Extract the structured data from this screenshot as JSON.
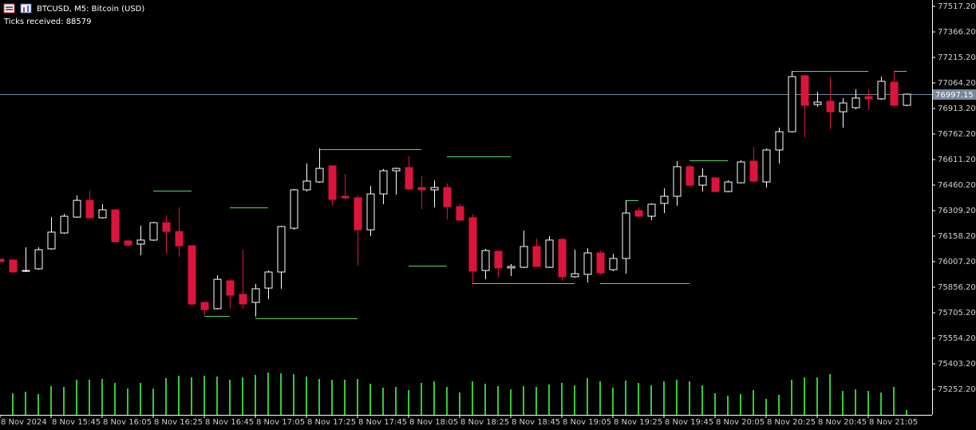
{
  "chart_data": {
    "type": "candlestick",
    "title": "BTCUSD, M5:  Bitcoin (USD)",
    "subtitle": "Ticks received: 88579",
    "categories": [
      "8 Nov 2024",
      null,
      null,
      null,
      "8 Nov 15:45",
      null,
      null,
      null,
      "8 Nov 16:05",
      null,
      null,
      null,
      "8 Nov 16:25",
      null,
      null,
      null,
      "8 Nov 16:45",
      null,
      null,
      null,
      "8 Nov 17:05",
      null,
      null,
      null,
      "8 Nov 17:25",
      null,
      null,
      null,
      "8 Nov 17:45",
      null,
      null,
      null,
      "8 Nov 18:05",
      null,
      null,
      null,
      "8 Nov 18:25",
      null,
      null,
      null,
      "8 Nov 18:45",
      null,
      null,
      null,
      "8 Nov 19:05",
      null,
      null,
      null,
      "8 Nov 19:25",
      null,
      null,
      null,
      "8 Nov 19:45",
      null,
      null,
      null,
      "8 Nov 20:05",
      null,
      null,
      null,
      "8 Nov 20:25",
      null,
      null,
      null,
      "8 Nov 20:45",
      null,
      null,
      null,
      "8 Nov 21:05",
      null,
      null,
      null
    ],
    "open": [
      76022,
      76017,
      75951,
      75965,
      76083,
      76177,
      76271,
      76370,
      76267,
      76314,
      76130,
      76111,
      76135,
      76238,
      76186,
      76101,
      75766,
      75729,
      75894,
      75814,
      75766,
      75851,
      75946,
      76205,
      76432,
      76479,
      76574,
      76394,
      76385,
      76196,
      76408,
      76545,
      76564,
      76446,
      76432,
      76446,
      76333,
      76267,
      75955,
      76069,
      75970,
      75974,
      76097,
      75974,
      76139,
      75918,
      75932,
      76059,
      75960,
      76026,
      76309,
      76276,
      76352,
      76394,
      76569,
      76460,
      76503,
      76422,
      76474,
      76602,
      76479,
      76668,
      76776,
      77107,
      76937,
      76956,
      76894,
      76918,
      76984,
      76970,
      77069,
      76932
    ],
    "high": [
      76022,
      76022,
      76092,
      76092,
      76271,
      76290,
      76399,
      76427,
      76347,
      76314,
      76139,
      76220,
      76243,
      76281,
      76328,
      76106,
      75771,
      75927,
      75903,
      76078,
      75875,
      75955,
      76220,
      76437,
      76588,
      76677,
      76578,
      76526,
      76399,
      76455,
      76555,
      76564,
      76630,
      76512,
      76488,
      76470,
      76347,
      76290,
      76083,
      76073,
      75993,
      76191,
      76144,
      76158,
      76144,
      76078,
      76087,
      76073,
      76054,
      76370,
      76328,
      76352,
      76441,
      76602,
      76578,
      76559,
      76507,
      76488,
      76607,
      76687,
      76677,
      76800,
      77135,
      77111,
      77013,
      77097,
      76975,
      77027,
      77027,
      77102,
      77135,
      77003
    ],
    "low": [
      76007,
      75941,
      75946,
      75960,
      76078,
      76172,
      76267,
      76262,
      76262,
      76120,
      76101,
      76045,
      76130,
      76054,
      76036,
      75747,
      75691,
      75724,
      75729,
      75729,
      75682,
      75785,
      75847,
      76196,
      76422,
      76474,
      76338,
      76375,
      75984,
      76158,
      76347,
      76404,
      76432,
      76319,
      76328,
      76257,
      76248,
      75880,
      75903,
      75913,
      75922,
      75970,
      75974,
      75970,
      75894,
      75913,
      75884,
      75932,
      75951,
      75936,
      76271,
      76253,
      76295,
      76338,
      76451,
      76422,
      76418,
      76418,
      76470,
      76474,
      76446,
      76588,
      76772,
      76743,
      76923,
      76791,
      76800,
      76908,
      76904,
      76965,
      76923,
      76927
    ],
    "close": [
      76007,
      75946,
      75955,
      76078,
      76182,
      76276,
      76370,
      76267,
      76314,
      76125,
      76106,
      76135,
      76238,
      76186,
      76101,
      75757,
      75724,
      75903,
      75809,
      75757,
      75847,
      75946,
      76215,
      76432,
      76484,
      76559,
      76375,
      76385,
      76196,
      76408,
      76545,
      76559,
      76437,
      76432,
      76446,
      76333,
      76253,
      75951,
      76073,
      75970,
      75979,
      76097,
      75979,
      76135,
      75918,
      75936,
      76059,
      75941,
      76026,
      76295,
      76276,
      76347,
      76394,
      76569,
      76460,
      76512,
      76422,
      76479,
      76597,
      76484,
      76668,
      76776,
      77102,
      76932,
      76951,
      76894,
      76946,
      76975,
      76970,
      77074,
      76932,
      76998
    ],
    "volume": [
      null,
      27,
      29,
      26,
      36,
      35,
      44,
      44,
      45,
      40,
      33,
      40,
      33,
      46,
      49,
      47,
      49,
      48,
      44,
      47,
      50,
      53,
      52,
      51,
      48,
      45,
      44,
      44,
      45,
      39,
      34,
      35,
      31,
      40,
      42,
      35,
      28,
      42,
      39,
      36,
      32,
      36,
      35,
      38,
      40,
      37,
      46,
      42,
      34,
      43,
      40,
      37,
      42,
      44,
      42,
      37,
      27,
      24,
      26,
      31,
      20,
      25,
      44,
      47,
      47,
      51,
      30,
      32,
      30,
      28,
      35,
      6
    ],
    "levels": [
      {
        "price": 76427,
        "from": 12,
        "to": 15
      },
      {
        "price": 76328,
        "from": 18,
        "to": 21
      },
      {
        "price": 75686,
        "from": 16,
        "to": 18
      },
      {
        "price": 75672,
        "from": 20,
        "to": 28
      },
      {
        "price": 76672,
        "from": 25,
        "to": 33
      },
      {
        "price": 76630,
        "from": 35,
        "to": 40
      },
      {
        "price": 75984,
        "from": 32,
        "to": 35
      },
      {
        "price": 75880,
        "from": 37,
        "to": 45
      },
      {
        "price": 75880,
        "from": 47,
        "to": 54
      },
      {
        "price": 76370,
        "from": 49,
        "to": 50
      },
      {
        "price": 76607,
        "from": 54,
        "to": 57
      },
      {
        "price": 77135,
        "from": 62,
        "to": 68
      },
      {
        "price": 77135,
        "from": 70,
        "to": 71
      }
    ],
    "last_price": 76997.15,
    "ylim": [
      75101.2,
      77555
    ],
    "yticks": [
      {
        "value": 77517.2,
        "label": "77517.20"
      },
      {
        "value": 77366.2,
        "label": "77366.20"
      },
      {
        "value": 77215.2,
        "label": "77215.20"
      },
      {
        "value": 77064.2,
        "label": "77064.20"
      },
      {
        "value": 76913.2,
        "label": "76913.20"
      },
      {
        "value": 76762.2,
        "label": "76762.20"
      },
      {
        "value": 76611.2,
        "label": "76611.20"
      },
      {
        "value": 76460.2,
        "label": "76460.20"
      },
      {
        "value": 76309.2,
        "label": "76309.20"
      },
      {
        "value": 76158.2,
        "label": "76158.20"
      },
      {
        "value": 76007.2,
        "label": "76007.20"
      },
      {
        "value": 75856.2,
        "label": "75856.20"
      },
      {
        "value": 75705.2,
        "label": "75705.20"
      },
      {
        "value": 75554.2,
        "label": "75554.20"
      },
      {
        "value": 75403.2,
        "label": "75403.20"
      },
      {
        "value": 75252.2,
        "label": "75252.20"
      }
    ],
    "up_color": "#ffffff",
    "down_color": "#dc143c",
    "volume_color": "#32cd32",
    "level_color": "#5fd35f",
    "price_line_color": "#778899"
  }
}
